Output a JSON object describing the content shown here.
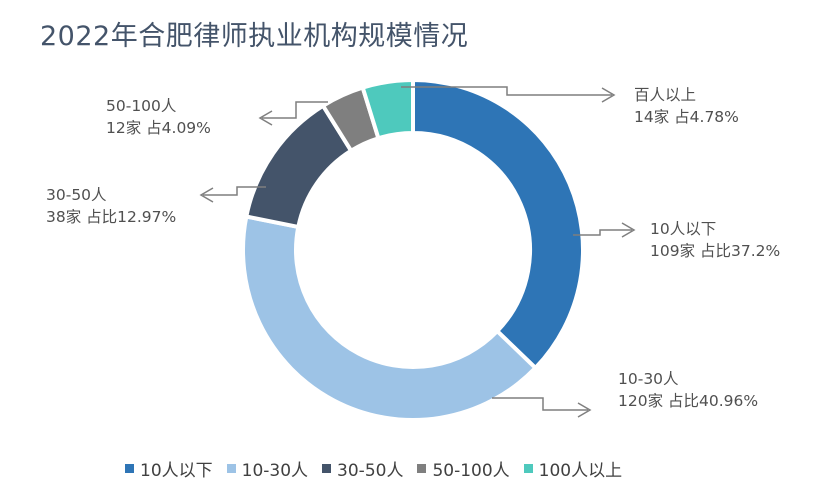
{
  "title": "2022年合肥律师执业机构规模情况",
  "chart_data": {
    "type": "pie",
    "subtype": "donut",
    "title": "2022年合肥律师执业机构规模情况",
    "unit": "家",
    "start_angle": "12 o'clock, clockwise",
    "categories": [
      "10人以下",
      "10-30人",
      "30-50人",
      "50-100人",
      "100人以上"
    ],
    "values": [
      109,
      120,
      38,
      12,
      14
    ],
    "percentages": [
      37.2,
      40.96,
      12.97,
      4.09,
      4.78
    ],
    "colors": [
      "#2e75b6",
      "#9dc3e6",
      "#44546a",
      "#7f7f7f",
      "#4ec9bd"
    ],
    "legend_position": "bottom",
    "data_labels": [
      {
        "name": "10人以下",
        "text": "109家  占比37.2%"
      },
      {
        "name": "10-30人",
        "text": "120家  占比40.96%"
      },
      {
        "name": "30-50人",
        "text": "38家  占比12.97%"
      },
      {
        "name": "50-100人",
        "text": "12家  占4.09%"
      },
      {
        "name": "百人以上",
        "text": "14家 占4.78%"
      }
    ]
  },
  "labels": {
    "s0": {
      "line1": "10人以下",
      "line2": "109家  占比37.2%"
    },
    "s1": {
      "line1": "10-30人",
      "line2": "120家  占比40.96%"
    },
    "s2": {
      "line1": "30-50人",
      "line2": "38家  占比12.97%"
    },
    "s3": {
      "line1": "50-100人",
      "line2": "12家  占4.09%"
    },
    "s4": {
      "line1": "百人以上",
      "line2": "14家 占4.78%"
    }
  },
  "legend": [
    {
      "label": "10人以下",
      "color": "#2e75b6"
    },
    {
      "label": "10-30人",
      "color": "#9dc3e6"
    },
    {
      "label": "30-50人",
      "color": "#44546a"
    },
    {
      "label": "50-100人",
      "color": "#7f7f7f"
    },
    {
      "label": "100人以上",
      "color": "#4ec9bd"
    }
  ]
}
